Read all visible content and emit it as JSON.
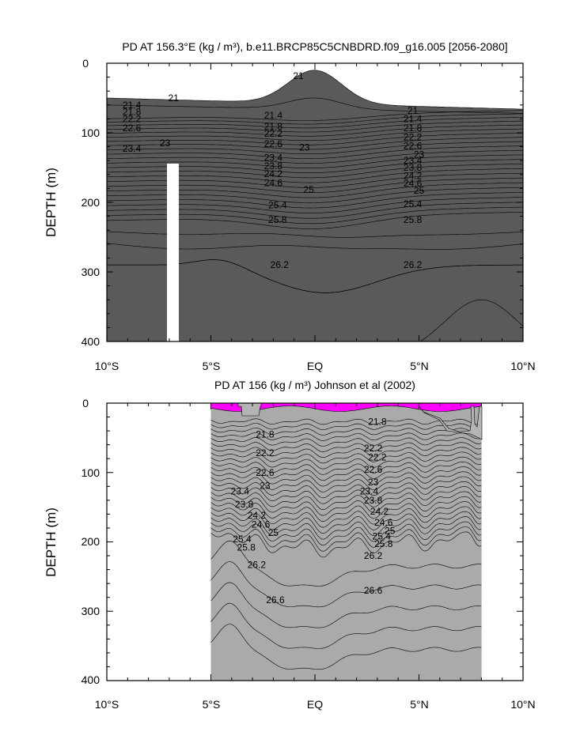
{
  "chart_data": [
    {
      "type": "heatmap",
      "title": "PD AT 156.3°E (kg / m³), b.e11.BRCP85C5CNBDRD.f09_g16.005 [2056-2080]",
      "ylabel": "DEPTH (m)",
      "xlabel": "",
      "x_ticks": [
        "10°S",
        "5°S",
        "EQ",
        "5°N",
        "10°N"
      ],
      "y_ticks": [
        "0",
        "100",
        "200",
        "300",
        "400"
      ],
      "xlim": [
        -10,
        10
      ],
      "ylim": [
        0,
        400
      ],
      "y_inverted": true,
      "grid": false,
      "levels": [
        20.6,
        21,
        21.2,
        21.4,
        21.6,
        21.8,
        22,
        22.2,
        22.4,
        22.6,
        22.8,
        23,
        23.2,
        23.4,
        23.6,
        23.8,
        24,
        24.2,
        24.4,
        24.6,
        24.8,
        25,
        25.2,
        25.4,
        25.6,
        25.8,
        26,
        26.2,
        26.4,
        26.6,
        26.8
      ],
      "missing_column": {
        "lat": -6.8,
        "depth_from": 145,
        "depth_to": 400
      },
      "contour_labels": [
        {
          "text": "21",
          "lat": -0.8,
          "depth": 18
        },
        {
          "text": "21",
          "lat": -6.8,
          "depth": 50
        },
        {
          "text": "21",
          "lat": 4.7,
          "depth": 68
        },
        {
          "text": "21.4",
          "lat": -8.8,
          "depth": 60
        },
        {
          "text": "21.4",
          "lat": -2.0,
          "depth": 75
        },
        {
          "text": "21.4",
          "lat": 4.7,
          "depth": 80
        },
        {
          "text": "21.8",
          "lat": -8.8,
          "depth": 70
        },
        {
          "text": "21.8",
          "lat": -2.0,
          "depth": 91
        },
        {
          "text": "21.8",
          "lat": 4.7,
          "depth": 93
        },
        {
          "text": "22.2",
          "lat": -8.8,
          "depth": 80
        },
        {
          "text": "22.2",
          "lat": -2.0,
          "depth": 101
        },
        {
          "text": "22.2",
          "lat": 4.7,
          "depth": 106
        },
        {
          "text": "22.6",
          "lat": -8.8,
          "depth": 93
        },
        {
          "text": "22.6",
          "lat": -2.0,
          "depth": 116
        },
        {
          "text": "22.6",
          "lat": 4.7,
          "depth": 119
        },
        {
          "text": "23",
          "lat": -7.2,
          "depth": 115
        },
        {
          "text": "23",
          "lat": -0.5,
          "depth": 121
        },
        {
          "text": "23",
          "lat": 5.0,
          "depth": 131
        },
        {
          "text": "23.4",
          "lat": -8.8,
          "depth": 123
        },
        {
          "text": "23.4",
          "lat": -2.0,
          "depth": 136
        },
        {
          "text": "23.4",
          "lat": 4.7,
          "depth": 140
        },
        {
          "text": "23.8",
          "lat": -2.0,
          "depth": 148
        },
        {
          "text": "23.8",
          "lat": 4.7,
          "depth": 150
        },
        {
          "text": "24.2",
          "lat": -2.0,
          "depth": 159
        },
        {
          "text": "24.2",
          "lat": 4.7,
          "depth": 162
        },
        {
          "text": "24.6",
          "lat": -2.0,
          "depth": 172
        },
        {
          "text": "24.6",
          "lat": 4.7,
          "depth": 173
        },
        {
          "text": "25",
          "lat": -0.3,
          "depth": 182
        },
        {
          "text": "25",
          "lat": 5.0,
          "depth": 183
        },
        {
          "text": "25.4",
          "lat": -1.8,
          "depth": 204
        },
        {
          "text": "25.4",
          "lat": 4.7,
          "depth": 202
        },
        {
          "text": "25.8",
          "lat": -1.8,
          "depth": 225
        },
        {
          "text": "25.8",
          "lat": 4.7,
          "depth": 225
        },
        {
          "text": "26.2",
          "lat": -1.7,
          "depth": 290
        },
        {
          "text": "26.2",
          "lat": 4.7,
          "depth": 290
        }
      ]
    },
    {
      "type": "heatmap",
      "title": "PD AT 156 (kg / m³) Johnson et al (2002)",
      "ylabel": "DEPTH (m)",
      "xlabel": "",
      "x_ticks": [
        "10°S",
        "5°S",
        "EQ",
        "5°N",
        "10°N"
      ],
      "y_ticks": [
        "0",
        "100",
        "200",
        "300",
        "400"
      ],
      "xlim": [
        -10,
        10
      ],
      "ylim": [
        0,
        400
      ],
      "y_inverted": true,
      "grid": false,
      "data_extent": [
        -5,
        8
      ],
      "levels": [
        21,
        21.2,
        21.4,
        21.6,
        21.8,
        22,
        22.2,
        22.4,
        22.6,
        22.8,
        23,
        23.2,
        23.4,
        23.6,
        23.8,
        24,
        24.2,
        24.4,
        24.6,
        24.8,
        25,
        25.2,
        25.4,
        25.6,
        25.8,
        26,
        26.2,
        26.4,
        26.6,
        26.8
      ],
      "contour_labels": [
        {
          "text": "21.8",
          "lat": -2.4,
          "depth": 45
        },
        {
          "text": "21.8",
          "lat": 3.0,
          "depth": 27
        },
        {
          "text": "22.2",
          "lat": -2.4,
          "depth": 72
        },
        {
          "text": "22.2",
          "lat": 2.8,
          "depth": 65
        },
        {
          "text": "22.2",
          "lat": 3.0,
          "depth": 78
        },
        {
          "text": "22.6",
          "lat": -2.4,
          "depth": 100
        },
        {
          "text": "22.6",
          "lat": 2.8,
          "depth": 96
        },
        {
          "text": "23",
          "lat": -2.4,
          "depth": 119
        },
        {
          "text": "23",
          "lat": 2.8,
          "depth": 114
        },
        {
          "text": "23.4",
          "lat": -3.6,
          "depth": 127
        },
        {
          "text": "23.4",
          "lat": 2.6,
          "depth": 127
        },
        {
          "text": "23.8",
          "lat": -3.4,
          "depth": 146
        },
        {
          "text": "23.8",
          "lat": 2.8,
          "depth": 140
        },
        {
          "text": "24.2",
          "lat": -2.8,
          "depth": 162
        },
        {
          "text": "24.2",
          "lat": 3.1,
          "depth": 156
        },
        {
          "text": "24.6",
          "lat": -2.6,
          "depth": 175
        },
        {
          "text": "24.6",
          "lat": 3.3,
          "depth": 172
        },
        {
          "text": "25",
          "lat": -2.0,
          "depth": 187
        },
        {
          "text": "25",
          "lat": 3.6,
          "depth": 184
        },
        {
          "text": "25.4",
          "lat": -3.5,
          "depth": 196
        },
        {
          "text": "25.4",
          "lat": 3.2,
          "depth": 192
        },
        {
          "text": "25.8",
          "lat": -3.3,
          "depth": 208
        },
        {
          "text": "25.8",
          "lat": 3.3,
          "depth": 203
        },
        {
          "text": "26.2",
          "lat": -2.8,
          "depth": 233
        },
        {
          "text": "26.2",
          "lat": 2.8,
          "depth": 220
        },
        {
          "text": "26.6",
          "lat": 2.8,
          "depth": 270
        },
        {
          "text": "26.6",
          "lat": -1.9,
          "depth": 284
        }
      ]
    }
  ]
}
